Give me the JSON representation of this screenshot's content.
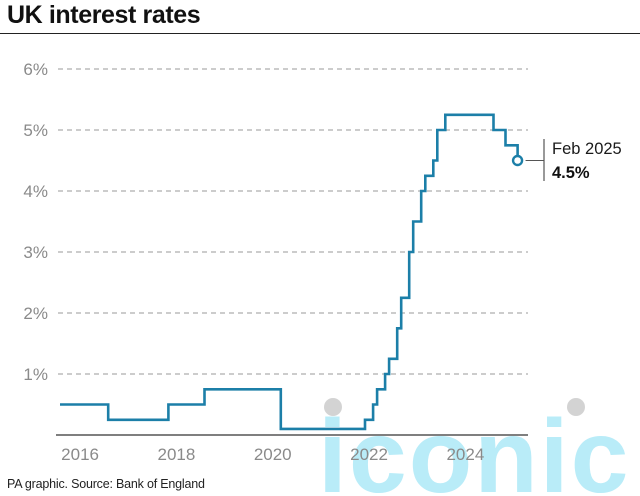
{
  "header": {
    "title": "UK interest rates"
  },
  "footer": {
    "source": "PA graphic. Source: Bank of England"
  },
  "watermark": {
    "text": "iconic",
    "color": "#7fdcf2"
  },
  "colors": {
    "line": "#1c7fa8",
    "grid": "#9a9a9a",
    "axis": "#333333",
    "tick_text": "#8a8a8a"
  },
  "chart_data": {
    "type": "line",
    "title": "UK interest rates",
    "xlabel": "",
    "ylabel": "",
    "grid": true,
    "x_ticks": [
      "2016",
      "2018",
      "2020",
      "2022",
      "2024"
    ],
    "y_ticks": [
      "1%",
      "2%",
      "3%",
      "4%",
      "5%",
      "6%"
    ],
    "xlim": [
      2015.5,
      2025.3
    ],
    "ylim": [
      0,
      6
    ],
    "series": [
      {
        "step": true,
        "points": [
          [
            "2015-08",
            0.5
          ],
          [
            "2016-08",
            0.25
          ],
          [
            "2017-11",
            0.5
          ],
          [
            "2018-08",
            0.75
          ],
          [
            "2020-03",
            0.1
          ],
          [
            "2021-12",
            0.25
          ],
          [
            "2022-02",
            0.5
          ],
          [
            "2022-03",
            0.75
          ],
          [
            "2022-05",
            1.0
          ],
          [
            "2022-06",
            1.25
          ],
          [
            "2022-08",
            1.75
          ],
          [
            "2022-09",
            2.25
          ],
          [
            "2022-11",
            3.0
          ],
          [
            "2022-12",
            3.5
          ],
          [
            "2023-02",
            4.0
          ],
          [
            "2023-03",
            4.25
          ],
          [
            "2023-05",
            4.5
          ],
          [
            "2023-06",
            5.0
          ],
          [
            "2023-08",
            5.25
          ],
          [
            "2024-08",
            5.0
          ],
          [
            "2024-11",
            4.75
          ],
          [
            "2025-02",
            4.5
          ]
        ]
      }
    ],
    "annotation": {
      "date_label": "Feb 2025",
      "value_label": "4.5%",
      "point": [
        "2025-02",
        4.5
      ]
    }
  }
}
